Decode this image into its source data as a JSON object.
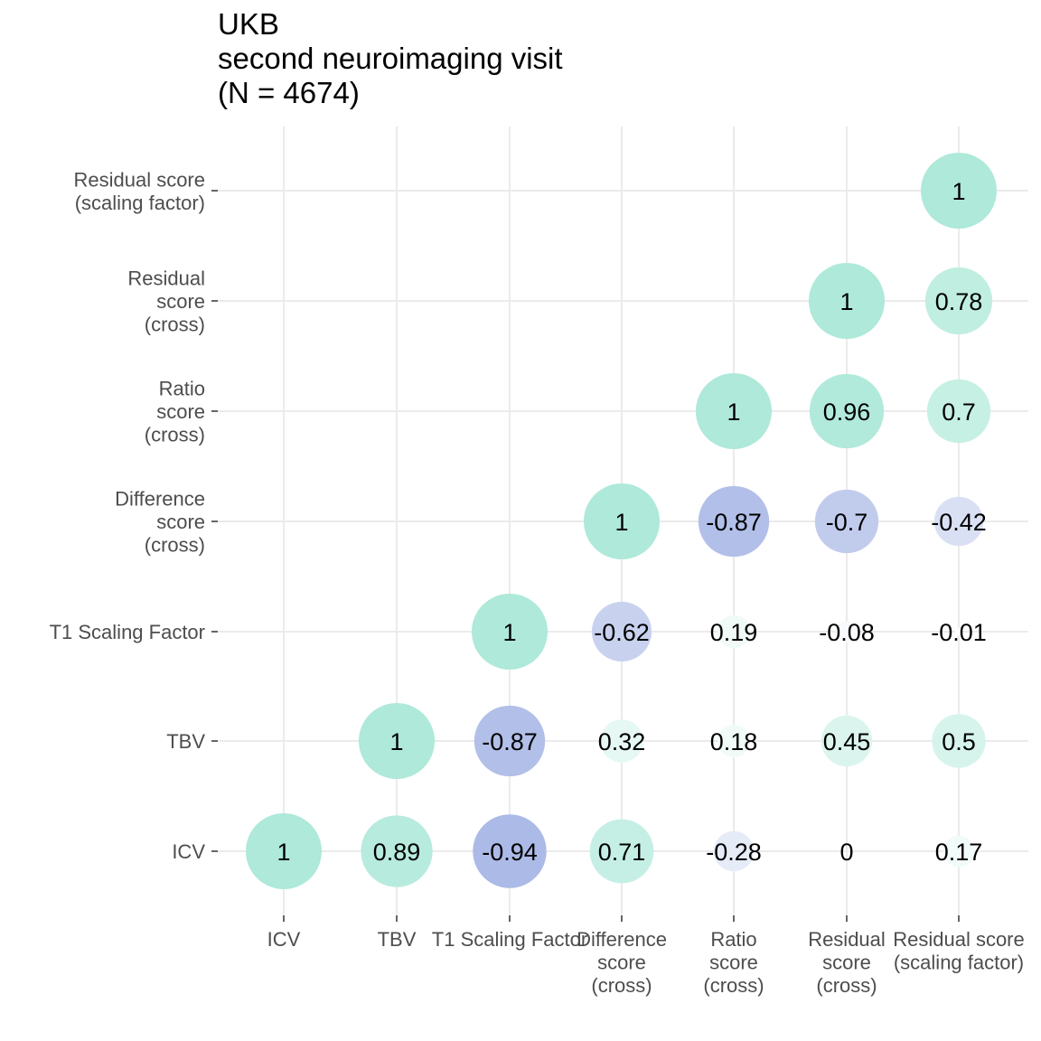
{
  "chart_data": {
    "type": "correlation-bubble",
    "title_lines": [
      "UKB",
      "second neuroimaging visit",
      "(N = 4674)"
    ],
    "variables": [
      {
        "key": "ICV",
        "lines": [
          "ICV"
        ]
      },
      {
        "key": "TBV",
        "lines": [
          "TBV"
        ]
      },
      {
        "key": "T1SF",
        "lines": [
          "T1 Scaling Factor"
        ]
      },
      {
        "key": "DIFF",
        "lines": [
          "Difference",
          "score",
          "(cross)"
        ]
      },
      {
        "key": "RATIO",
        "lines": [
          "Ratio",
          "score",
          "(cross)"
        ]
      },
      {
        "key": "RES",
        "lines": [
          "Residual",
          "score",
          "(cross)"
        ]
      },
      {
        "key": "RESSF",
        "lines": [
          "Residual score",
          "(scaling factor)"
        ]
      }
    ],
    "y_tick_lines": [
      [
        "ICV"
      ],
      [
        "TBV"
      ],
      [
        "T1 Scaling Factor"
      ],
      [
        "Difference",
        "score",
        "(cross)"
      ],
      [
        "Ratio",
        "score",
        "(cross)"
      ],
      [
        "Residual",
        "score",
        "(cross)"
      ],
      [
        "Residual score",
        "(scaling factor)"
      ]
    ],
    "cells": [
      {
        "x": 0,
        "y": 0,
        "value": 1,
        "label": "1"
      },
      {
        "x": 1,
        "y": 0,
        "value": 0.89,
        "label": "0.89"
      },
      {
        "x": 2,
        "y": 0,
        "value": -0.94,
        "label": "-0.94"
      },
      {
        "x": 3,
        "y": 0,
        "value": 0.71,
        "label": "0.71"
      },
      {
        "x": 4,
        "y": 0,
        "value": -0.28,
        "label": "-0.28"
      },
      {
        "x": 5,
        "y": 0,
        "value": 0,
        "label": "0"
      },
      {
        "x": 6,
        "y": 0,
        "value": 0.17,
        "label": "0.17"
      },
      {
        "x": 1,
        "y": 1,
        "value": 1,
        "label": "1"
      },
      {
        "x": 2,
        "y": 1,
        "value": -0.87,
        "label": "-0.87"
      },
      {
        "x": 3,
        "y": 1,
        "value": 0.32,
        "label": "0.32"
      },
      {
        "x": 4,
        "y": 1,
        "value": 0.18,
        "label": "0.18"
      },
      {
        "x": 5,
        "y": 1,
        "value": 0.45,
        "label": "0.45"
      },
      {
        "x": 6,
        "y": 1,
        "value": 0.5,
        "label": "0.5"
      },
      {
        "x": 2,
        "y": 2,
        "value": 1,
        "label": "1"
      },
      {
        "x": 3,
        "y": 2,
        "value": -0.62,
        "label": "-0.62"
      },
      {
        "x": 4,
        "y": 2,
        "value": 0.19,
        "label": "0.19"
      },
      {
        "x": 5,
        "y": 2,
        "value": -0.08,
        "label": "-0.08"
      },
      {
        "x": 6,
        "y": 2,
        "value": -0.01,
        "label": "-0.01"
      },
      {
        "x": 3,
        "y": 3,
        "value": 1,
        "label": "1"
      },
      {
        "x": 4,
        "y": 3,
        "value": -0.87,
        "label": "-0.87"
      },
      {
        "x": 5,
        "y": 3,
        "value": -0.7,
        "label": "-0.7"
      },
      {
        "x": 6,
        "y": 3,
        "value": -0.42,
        "label": "-0.42"
      },
      {
        "x": 4,
        "y": 4,
        "value": 1,
        "label": "1"
      },
      {
        "x": 5,
        "y": 4,
        "value": 0.96,
        "label": "0.96"
      },
      {
        "x": 6,
        "y": 4,
        "value": 0.7,
        "label": "0.7"
      },
      {
        "x": 5,
        "y": 5,
        "value": 1,
        "label": "1"
      },
      {
        "x": 6,
        "y": 5,
        "value": 0.78,
        "label": "0.78"
      },
      {
        "x": 6,
        "y": 6,
        "value": 1,
        "label": "1"
      }
    ],
    "value_range": [
      -1,
      1
    ],
    "colors": {
      "positive": "#aee9d9",
      "negative": "#a7b6e5",
      "neutral": "#ffffff",
      "grid": "#ebebeb",
      "tick": "#333333"
    },
    "grid": true,
    "legend": "none"
  }
}
